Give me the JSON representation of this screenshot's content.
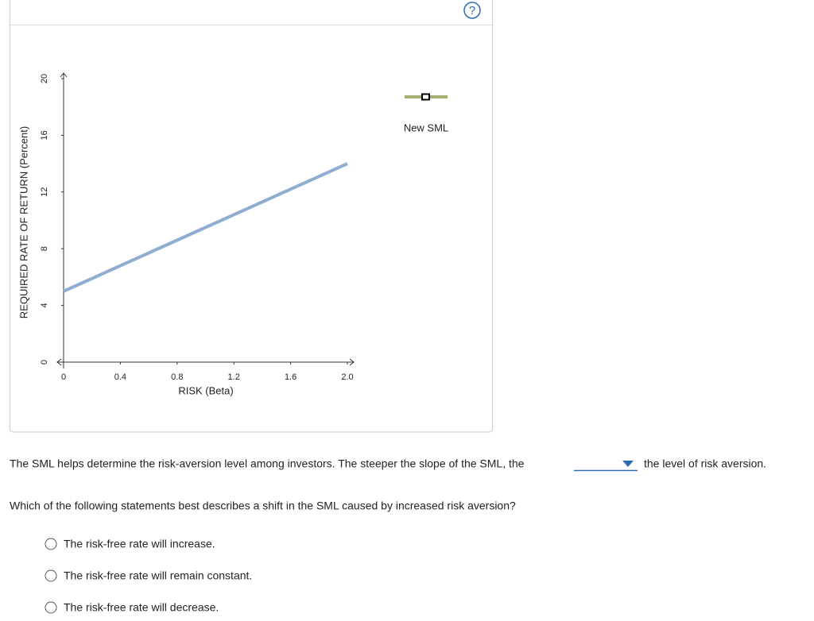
{
  "chart_data": {
    "type": "line",
    "x_label": "RISK (Beta)",
    "y_label": "REQUIRED RATE OF RETURN (Percent)",
    "x": [
      0,
      2
    ],
    "series": [
      {
        "color": "#8eadd0",
        "values": [
          5,
          14
        ]
      }
    ],
    "xlim": [
      0,
      2
    ],
    "ylim": [
      0,
      20
    ],
    "xticks": [
      0,
      0.4,
      0.8,
      1.2,
      1.6,
      {
        "value": 2,
        "label": "2.0"
      }
    ],
    "yticks": [
      0,
      4,
      8,
      12,
      16,
      20
    ],
    "tool": {
      "label": "New SML",
      "color": "#a8ad72"
    },
    "help": "?"
  },
  "statement": {
    "before": "The SML helps determine the risk-aversion level among investors. The steeper the slope of the SML, the",
    "after": "the level of risk aversion."
  },
  "question": {
    "text": "Which of the following statements best describes a shift in the SML caused by increased risk aversion?",
    "options": [
      "The risk-free rate will increase.",
      "The risk-free rate will remain constant.",
      "The risk-free rate will decrease."
    ]
  }
}
